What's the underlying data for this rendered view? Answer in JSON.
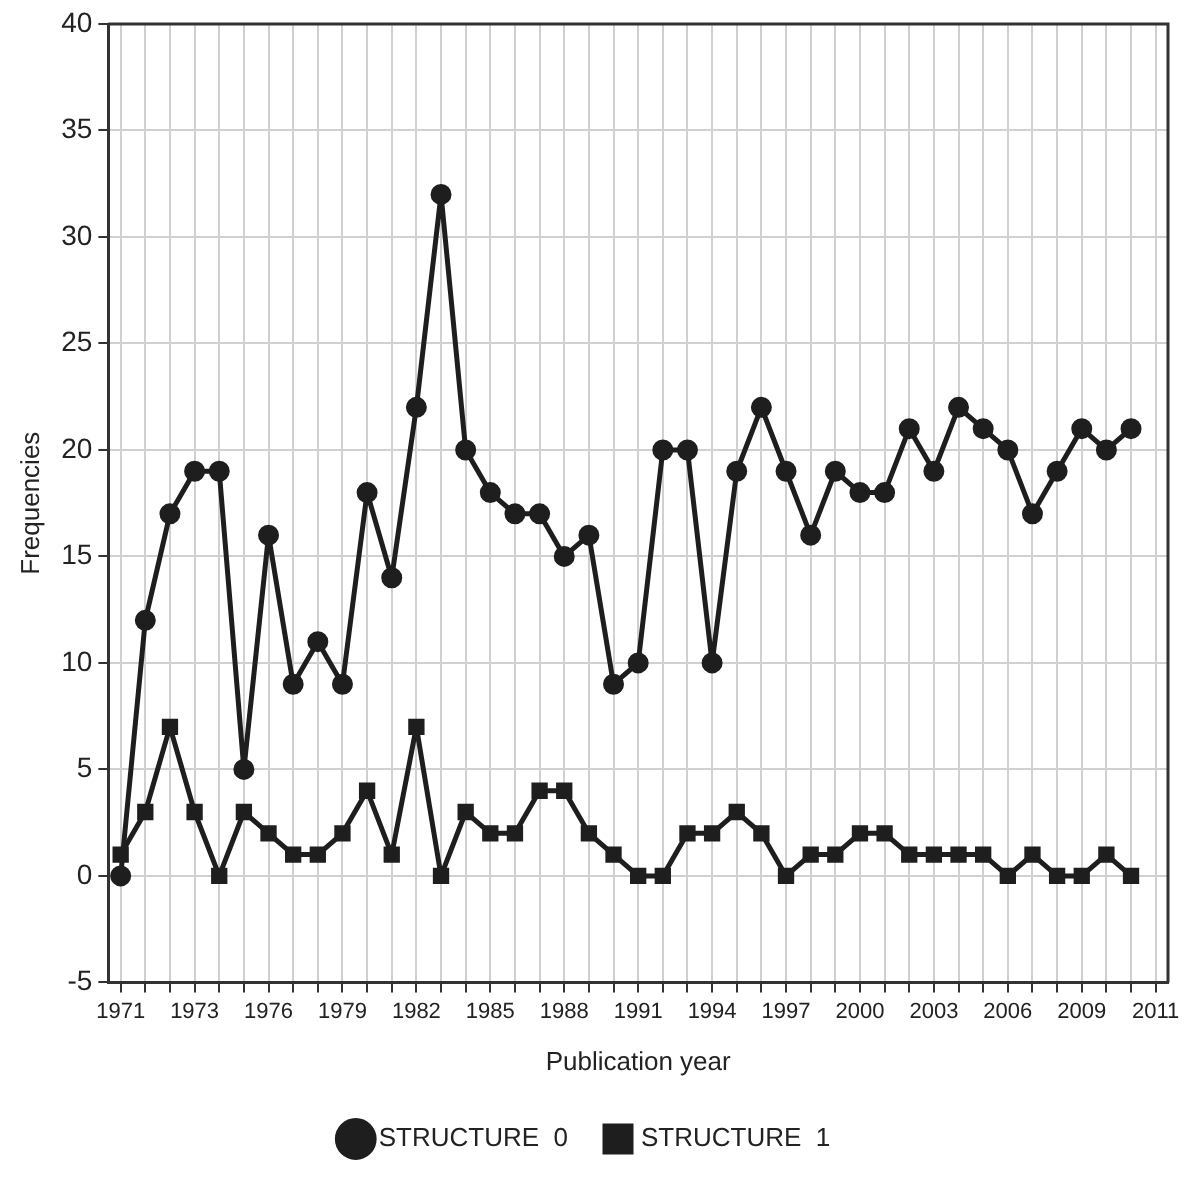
{
  "chart_data": {
    "type": "line",
    "xlabel": "Publication year",
    "ylabel": "Frequencies",
    "categories": [
      "1971",
      null,
      null,
      "1973",
      null,
      null,
      "1976",
      null,
      null,
      "1979",
      null,
      null,
      "1982",
      null,
      null,
      "1985",
      null,
      null,
      "1988",
      null,
      null,
      "1991",
      null,
      null,
      "1994",
      null,
      null,
      "1997",
      null,
      null,
      "2000",
      null,
      null,
      "2003",
      null,
      null,
      "2006",
      null,
      null,
      "2009",
      null,
      null,
      "2011"
    ],
    "series": [
      {
        "name": "STRUCTURE  0",
        "color": "#1e1e1e",
        "marker": "circle",
        "values": [
          0,
          12,
          17,
          19,
          19,
          5,
          16,
          9,
          11,
          9,
          18,
          14,
          22,
          32,
          20,
          18,
          17,
          17,
          15,
          16,
          9,
          10,
          20,
          20,
          10,
          19,
          22,
          19,
          16,
          19,
          18,
          18,
          21,
          19,
          22,
          21,
          20,
          17,
          19,
          21,
          20,
          21,
          null
        ]
      },
      {
        "name": "STRUCTURE  1",
        "color": "#1e1e1e",
        "marker": "square",
        "values": [
          1,
          3,
          7,
          3,
          0,
          3,
          2,
          1,
          1,
          2,
          4,
          1,
          7,
          0,
          3,
          2,
          2,
          4,
          4,
          2,
          1,
          0,
          0,
          2,
          2,
          3,
          2,
          0,
          1,
          1,
          2,
          2,
          1,
          1,
          1,
          1,
          0,
          1,
          0,
          0,
          1,
          0,
          null
        ]
      }
    ],
    "ylim": [
      -5,
      40
    ],
    "yticks": [
      -5,
      0,
      5,
      10,
      15,
      20,
      25,
      30,
      35,
      40
    ],
    "grid": true,
    "legend": "bottom",
    "line_style": "solid"
  }
}
